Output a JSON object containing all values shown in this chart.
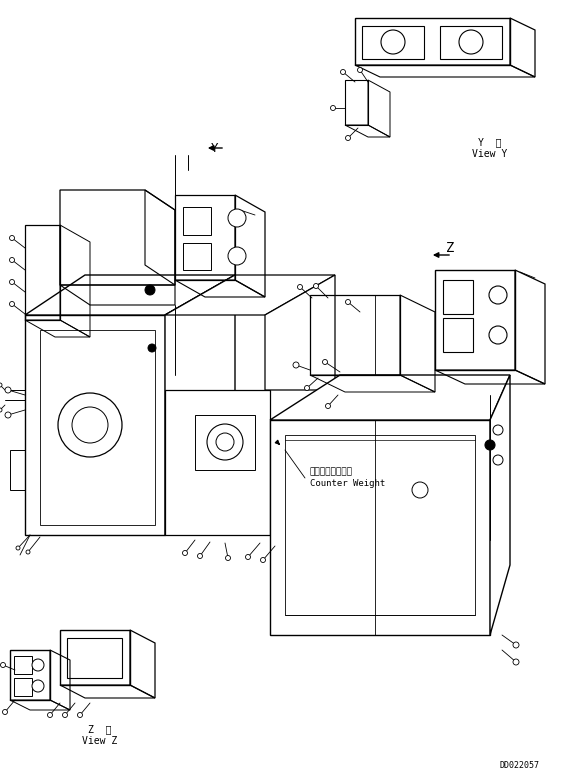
{
  "doc_number": "DD022057",
  "background_color": "#ffffff",
  "line_color": "#000000",
  "fig_width": 5.84,
  "fig_height": 7.77,
  "dpi": 100,
  "label_y_view": "Y  視\nView Y",
  "label_z_view": "Z  視\nView Z",
  "label_y_arrow": "Y",
  "label_z_arrow": "Z",
  "label_counter_weight_jp": "カウンタウェイト",
  "label_counter_weight_en": "Counter Weight"
}
